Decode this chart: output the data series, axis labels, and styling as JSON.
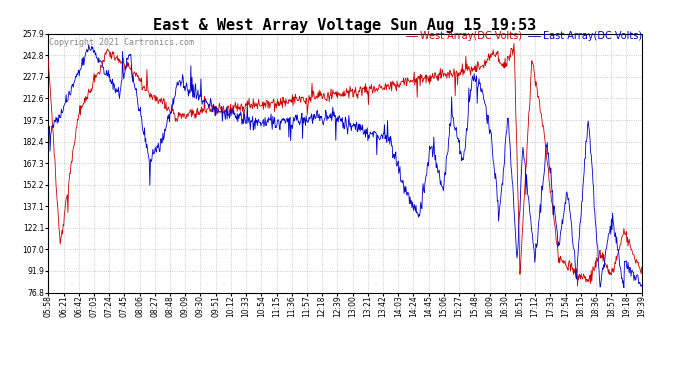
{
  "title": "East & West Array Voltage Sun Aug 15 19:53",
  "copyright": "Copyright 2021 Cartronics.com",
  "legend_east": "East Array(DC Volts)",
  "legend_west": "West Array(DC Volts)",
  "east_color": "#0000cc",
  "west_color": "#cc0000",
  "background_color": "#ffffff",
  "grid_color": "#bbbbbb",
  "ylim": [
    76.8,
    257.9
  ],
  "yticks": [
    76.8,
    91.9,
    107.0,
    122.1,
    137.1,
    152.2,
    167.3,
    182.4,
    197.5,
    212.6,
    227.7,
    242.8,
    257.9
  ],
  "xtick_labels": [
    "05:58",
    "06:21",
    "06:42",
    "07:03",
    "07:24",
    "07:45",
    "08:06",
    "08:27",
    "08:48",
    "09:09",
    "09:30",
    "09:51",
    "10:12",
    "10:33",
    "10:54",
    "11:15",
    "11:36",
    "11:57",
    "12:18",
    "12:39",
    "13:00",
    "13:21",
    "13:42",
    "14:03",
    "14:24",
    "14:45",
    "15:06",
    "15:27",
    "15:48",
    "16:09",
    "16:30",
    "16:51",
    "17:12",
    "17:33",
    "17:54",
    "18:15",
    "18:36",
    "18:57",
    "19:18",
    "19:39"
  ],
  "title_fontsize": 11,
  "label_fontsize": 7,
  "tick_fontsize": 5.5,
  "copyright_fontsize": 6
}
